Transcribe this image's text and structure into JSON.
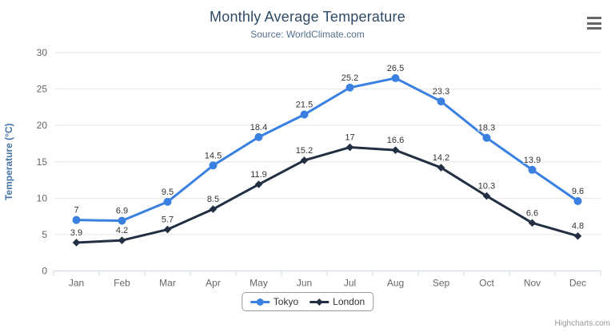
{
  "credits": "Highcharts.com",
  "colors": {
    "title": "#2e4a66",
    "subtitle": "#54708e",
    "axis_label": "#666666",
    "axis_title": "#4572a7",
    "axis_line": "#ccd6eb",
    "grid": "#e6e6e6",
    "data_label": "#333333",
    "legend_text": "#333333",
    "menu": "#666666",
    "credits": "#999999",
    "background": "#ffffff"
  },
  "menu": {
    "icon": "hamburger-icon"
  },
  "chart_data": {
    "type": "line",
    "title": "Monthly Average Temperature",
    "subtitle": "Source: WorldClimate.com",
    "categories": [
      "Jan",
      "Feb",
      "Mar",
      "Apr",
      "May",
      "Jun",
      "Jul",
      "Aug",
      "Sep",
      "Oct",
      "Nov",
      "Dec"
    ],
    "series": [
      {
        "name": "Tokyo",
        "color": "#3a80e1",
        "marker": "circle",
        "values": [
          7,
          6.9,
          9.5,
          14.5,
          18.4,
          21.5,
          25.2,
          26.5,
          23.3,
          18.3,
          13.9,
          9.6
        ]
      },
      {
        "name": "London",
        "color": "#222f43",
        "marker": "diamond",
        "values": [
          3.9,
          4.2,
          5.7,
          8.5,
          11.9,
          15.2,
          17,
          16.6,
          14.2,
          10.3,
          6.6,
          4.8
        ]
      }
    ],
    "xlabel": "",
    "ylabel": "Temperature (°C)",
    "ylim": [
      0,
      30
    ],
    "yticks": [
      0,
      5,
      10,
      15,
      20,
      25,
      30
    ],
    "grid": true,
    "data_labels": true,
    "legend_position": "bottom"
  }
}
